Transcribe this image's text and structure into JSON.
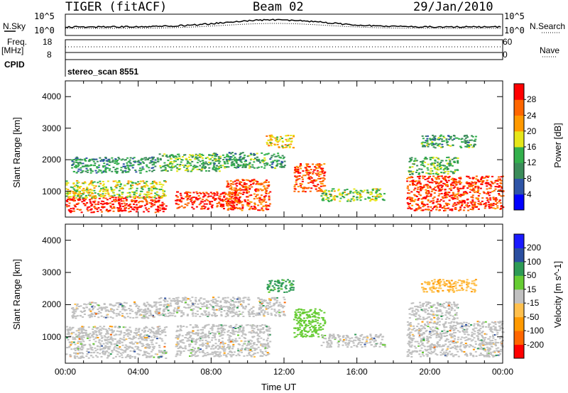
{
  "header": {
    "title": "TIGER (fitACF)",
    "beam": "Beam 02",
    "date": "29/Jan/2010"
  },
  "top_panels": {
    "nsky_label": "N.Sky",
    "nsearch_label": "N.Search",
    "noise_ticks": [
      "10^5",
      "10^0"
    ],
    "freq_label": "Freq.",
    "freq_unit": "[MHz]",
    "freq_ticks": [
      "18",
      "8"
    ],
    "nave_label": "Nave",
    "nave_ticks": [
      "60",
      "0"
    ],
    "cpid_label": "CPID",
    "cpid_value": "stereo_scan 8551"
  },
  "colors": {
    "power_scale": [
      "#0000ff",
      "#2e54a6",
      "#3b8c5a",
      "#33b04c",
      "#e6e61a",
      "#ff9900",
      "#ff6600",
      "#ff0000"
    ],
    "velocity_scale": [
      "#ff0000",
      "#ff6600",
      "#ff9900",
      "#ffc04d",
      "#c0c0c0",
      "#66cc33",
      "#2d9a55",
      "#2a4ea0",
      "#1a1aff"
    ],
    "ground_scatter": "#c0c0c0"
  },
  "chart_data": [
    {
      "type": "heatmap",
      "title": "",
      "xlabel": "",
      "ylabel": "Slant Range [km]",
      "xlim": [
        "00:00",
        "24:00"
      ],
      "ylim": [
        180,
        4500
      ],
      "y_ticks": [
        1000,
        2000,
        3000,
        4000
      ],
      "colorbar": {
        "label": "Power [dB]",
        "ticks": [
          4,
          8,
          12,
          16,
          20,
          24,
          28
        ],
        "range": [
          0,
          32
        ]
      },
      "regions": [
        {
          "t0": 0.0,
          "t1": 5.5,
          "r0": 350,
          "r1": 850,
          "level": 30
        },
        {
          "t0": 0.0,
          "t1": 5.5,
          "r0": 800,
          "r1": 1350,
          "level": 17
        },
        {
          "t0": 0.3,
          "t1": 5.0,
          "r0": 1600,
          "r1": 2100,
          "level": 11
        },
        {
          "t0": 6.0,
          "t1": 9.5,
          "r0": 450,
          "r1": 1000,
          "level": 29
        },
        {
          "t0": 5.0,
          "t1": 8.5,
          "r0": 1650,
          "r1": 2200,
          "level": 14
        },
        {
          "t0": 8.8,
          "t1": 11.2,
          "r0": 400,
          "r1": 1400,
          "level": 27
        },
        {
          "t0": 8.0,
          "t1": 12.0,
          "r0": 1750,
          "r1": 2250,
          "level": 12
        },
        {
          "t0": 11.0,
          "t1": 12.5,
          "r0": 2400,
          "r1": 2800,
          "level": 20
        },
        {
          "t0": 12.5,
          "t1": 14.2,
          "r0": 1000,
          "r1": 1900,
          "level": 27
        },
        {
          "t0": 14.0,
          "t1": 17.5,
          "r0": 700,
          "r1": 1100,
          "level": 16
        },
        {
          "t0": 18.7,
          "t1": 24.0,
          "r0": 400,
          "r1": 1500,
          "level": 28
        },
        {
          "t0": 18.8,
          "t1": 21.5,
          "r0": 1550,
          "r1": 2100,
          "level": 13
        },
        {
          "t0": 19.5,
          "t1": 22.5,
          "r0": 2400,
          "r1": 2800,
          "level": 12
        }
      ]
    },
    {
      "type": "heatmap",
      "title": "",
      "xlabel": "Time UT",
      "ylabel": "Slant Range [km]",
      "xlim": [
        "00:00",
        "24:00"
      ],
      "ylim": [
        180,
        4500
      ],
      "x_ticks": [
        "00:00",
        "04:00",
        "08:00",
        "12:00",
        "16:00",
        "20:00",
        "00:00"
      ],
      "y_ticks": [
        1000,
        2000,
        3000,
        4000
      ],
      "colorbar": {
        "label": "Velocity [m s^-1]",
        "ticks": [
          -200,
          -100,
          -50,
          -15,
          15,
          50,
          100,
          200
        ],
        "range": [
          -250,
          250
        ]
      },
      "regions": [
        {
          "t0": 0.0,
          "t1": 5.5,
          "r0": 350,
          "r1": 1350,
          "level": 0
        },
        {
          "t0": 0.3,
          "t1": 5.0,
          "r0": 1600,
          "r1": 2100,
          "level": 0
        },
        {
          "t0": 6.0,
          "t1": 11.2,
          "r0": 400,
          "r1": 1400,
          "level": 0
        },
        {
          "t0": 5.0,
          "t1": 12.0,
          "r0": 1650,
          "r1": 2250,
          "level": 0
        },
        {
          "t0": 11.0,
          "t1": 12.5,
          "r0": 2400,
          "r1": 2800,
          "level": 60
        },
        {
          "t0": 12.5,
          "t1": 14.2,
          "r0": 1000,
          "r1": 1900,
          "level": 30
        },
        {
          "t0": 14.0,
          "t1": 17.5,
          "r0": 700,
          "r1": 1100,
          "level": 0
        },
        {
          "t0": 18.7,
          "t1": 24.0,
          "r0": 400,
          "r1": 1500,
          "level": 0
        },
        {
          "t0": 18.8,
          "t1": 21.5,
          "r0": 1550,
          "r1": 2100,
          "level": 0
        },
        {
          "t0": 19.5,
          "t1": 22.5,
          "r0": 2400,
          "r1": 2800,
          "level": -40
        }
      ]
    }
  ]
}
